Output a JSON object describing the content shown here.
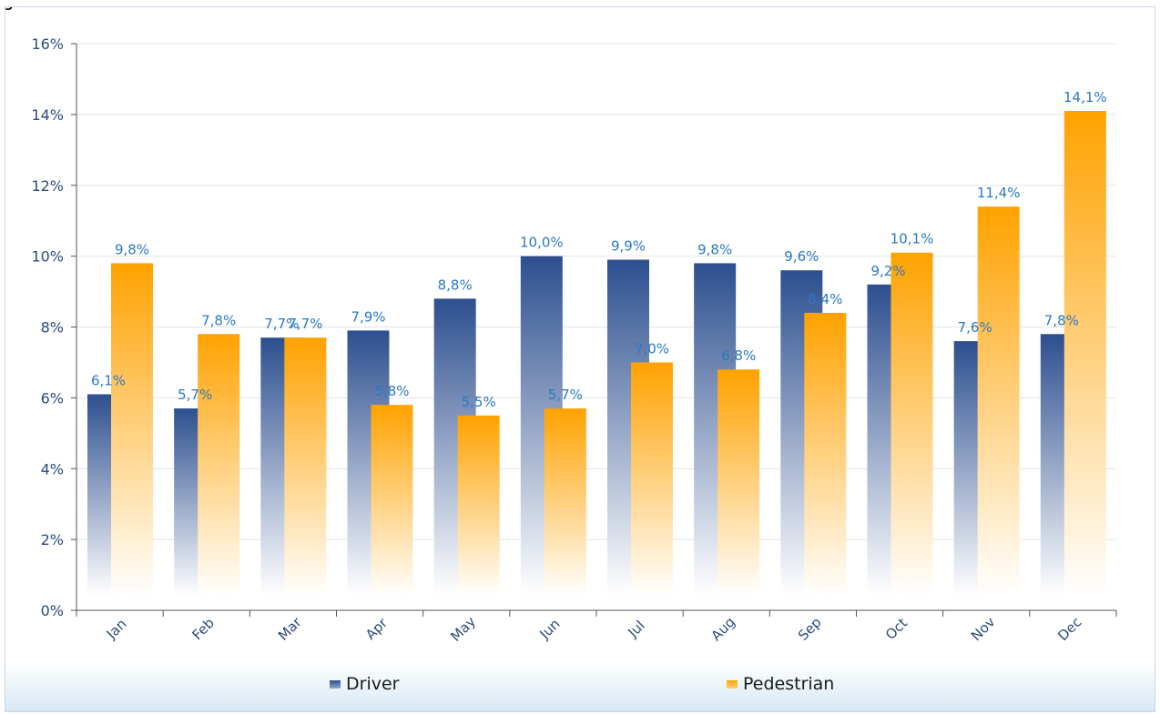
{
  "title": "g",
  "colors": {
    "driver_top": "#2d4f8f",
    "driver_bottom": "#ffffff",
    "pedestrian_top": "#ffa200",
    "pedestrian_bottom": "#ffffff",
    "axis_text": "#2b4a7c",
    "label_text": "#2a79c4",
    "grid": "#e4e4e4"
  },
  "legend": {
    "driver": "Driver",
    "pedestrian": "Pedestrian"
  },
  "chart_data": {
    "type": "bar",
    "categories": [
      "Jan",
      "Feb",
      "Mar",
      "Apr",
      "May",
      "Jun",
      "Jul",
      "Aug",
      "Sep",
      "Oct",
      "Nov",
      "Dec"
    ],
    "series": [
      {
        "name": "Driver",
        "values": [
          6.1,
          5.7,
          7.7,
          7.9,
          8.8,
          10.0,
          9.9,
          9.8,
          9.6,
          9.2,
          7.6,
          7.8
        ],
        "labels": [
          "6,1%",
          "5,7%",
          "7,7%",
          "7,9%",
          "8,8%",
          "10,0%",
          "9,9%",
          "9,8%",
          "9,6%",
          "9,2%",
          "7,6%",
          "7,8%"
        ]
      },
      {
        "name": "Pedestrian",
        "values": [
          9.8,
          7.8,
          7.7,
          5.8,
          5.5,
          5.7,
          7.0,
          6.8,
          8.4,
          10.1,
          11.4,
          14.1
        ],
        "labels": [
          "9,8%",
          "7,8%",
          "7,7%",
          "5,8%",
          "5,5%",
          "5,7%",
          "7,0%",
          "6,8%",
          "8,4%",
          "10,1%",
          "11,4%",
          "14,1%"
        ]
      }
    ],
    "ylim": [
      0,
      16
    ],
    "yticks": [
      0,
      2,
      4,
      6,
      8,
      10,
      12,
      14,
      16
    ],
    "ytick_labels": [
      "0%",
      "2%",
      "4%",
      "6%",
      "8%",
      "10%",
      "12%",
      "14%",
      "16%"
    ],
    "grid": true,
    "legend_position": "bottom"
  }
}
